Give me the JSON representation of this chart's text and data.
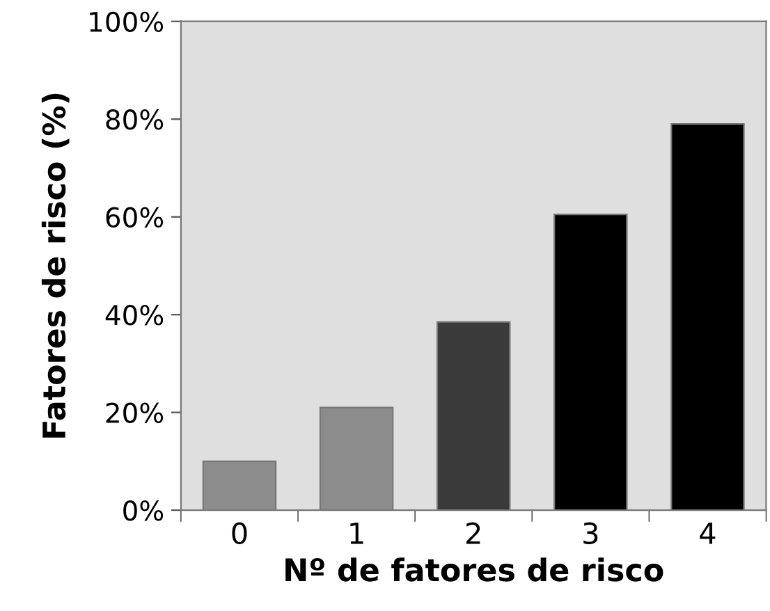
{
  "chart_data": {
    "type": "bar",
    "xlabel": "Nº de fatores de risco",
    "ylabel": "Fatores de risco (%)",
    "categories": [
      "0",
      "1",
      "2",
      "3",
      "4"
    ],
    "values": [
      10,
      21,
      38.5,
      60.5,
      79
    ],
    "colors": [
      "#8c8c8c",
      "#8c8c8c",
      "#3a3a3a",
      "#000000",
      "#000000"
    ],
    "ylim": [
      0,
      100
    ],
    "yticks": [
      {
        "value": 0,
        "label": "0%"
      },
      {
        "value": 20,
        "label": "20%"
      },
      {
        "value": 40,
        "label": "40%"
      },
      {
        "value": 60,
        "label": "60%"
      },
      {
        "value": 80,
        "label": "80%"
      },
      {
        "value": 100,
        "label": "100%"
      }
    ],
    "grid": false,
    "legend": false
  }
}
